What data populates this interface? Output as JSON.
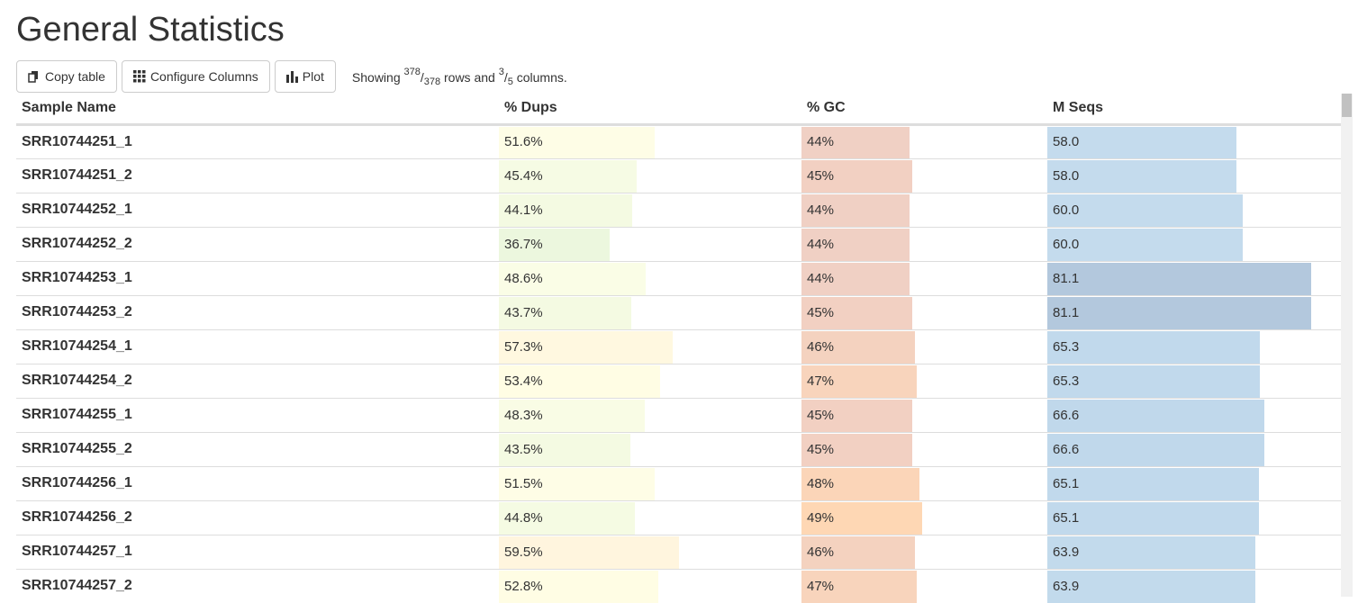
{
  "title": "General Statistics",
  "toolbar": {
    "copy_label": "Copy table",
    "configure_label": "Configure Columns",
    "plot_label": "Plot",
    "showing_prefix": "Showing ",
    "rows_shown": "378",
    "rows_total": "378",
    "rows_word": " rows and ",
    "cols_shown": "3",
    "cols_total": "5",
    "cols_word": " columns."
  },
  "columns": [
    "Sample Name",
    "% Dups",
    "% GC",
    "M Seqs"
  ],
  "rows": [
    {
      "name": "SRR10744251_1",
      "dups": "51.6%",
      "gc": "44%",
      "mseqs": "58.0",
      "dups_frac": 0.516,
      "gc_frac": 0.44,
      "mseqs_frac": 0.716,
      "dups_color": "#fefde6",
      "gc_color": "#f0d0c4",
      "mseqs_color": "#c4dbed"
    },
    {
      "name": "SRR10744251_2",
      "dups": "45.4%",
      "gc": "45%",
      "mseqs": "58.0",
      "dups_frac": 0.454,
      "gc_frac": 0.45,
      "mseqs_frac": 0.716,
      "dups_color": "#f6fbe4",
      "gc_color": "#f2d0c2",
      "mseqs_color": "#c4dbed"
    },
    {
      "name": "SRR10744252_1",
      "dups": "44.1%",
      "gc": "44%",
      "mseqs": "60.0",
      "dups_frac": 0.441,
      "gc_frac": 0.44,
      "mseqs_frac": 0.74,
      "dups_color": "#f4fae2",
      "gc_color": "#f0d0c4",
      "mseqs_color": "#c4dbed"
    },
    {
      "name": "SRR10744252_2",
      "dups": "36.7%",
      "gc": "44%",
      "mseqs": "60.0",
      "dups_frac": 0.367,
      "gc_frac": 0.44,
      "mseqs_frac": 0.74,
      "dups_color": "#ecf7de",
      "gc_color": "#f0d0c4",
      "mseqs_color": "#c4dbed"
    },
    {
      "name": "SRR10744253_1",
      "dups": "48.6%",
      "gc": "44%",
      "mseqs": "81.1",
      "dups_frac": 0.486,
      "gc_frac": 0.44,
      "mseqs_frac": 1.0,
      "dups_color": "#fafde6",
      "gc_color": "#f0d0c4",
      "mseqs_color": "#b3c8dd"
    },
    {
      "name": "SRR10744253_2",
      "dups": "43.7%",
      "gc": "45%",
      "mseqs": "81.1",
      "dups_frac": 0.437,
      "gc_frac": 0.45,
      "mseqs_frac": 1.0,
      "dups_color": "#f4fae2",
      "gc_color": "#f2d0c2",
      "mseqs_color": "#b3c8dd"
    },
    {
      "name": "SRR10744254_1",
      "dups": "57.3%",
      "gc": "46%",
      "mseqs": "65.3",
      "dups_frac": 0.573,
      "gc_frac": 0.46,
      "mseqs_frac": 0.805,
      "dups_color": "#fff8e0",
      "gc_color": "#f4d2bf",
      "mseqs_color": "#c1d9ec"
    },
    {
      "name": "SRR10744254_2",
      "dups": "53.4%",
      "gc": "47%",
      "mseqs": "65.3",
      "dups_frac": 0.534,
      "gc_frac": 0.47,
      "mseqs_frac": 0.805,
      "dups_color": "#fffde4",
      "gc_color": "#f8d4bc",
      "mseqs_color": "#c1d9ec"
    },
    {
      "name": "SRR10744255_1",
      "dups": "48.3%",
      "gc": "45%",
      "mseqs": "66.6",
      "dups_frac": 0.483,
      "gc_frac": 0.45,
      "mseqs_frac": 0.821,
      "dups_color": "#f9fce5",
      "gc_color": "#f2d0c2",
      "mseqs_color": "#c0d8eb"
    },
    {
      "name": "SRR10744255_2",
      "dups": "43.5%",
      "gc": "45%",
      "mseqs": "66.6",
      "dups_frac": 0.435,
      "gc_frac": 0.45,
      "mseqs_frac": 0.821,
      "dups_color": "#f4fae2",
      "gc_color": "#f2d0c2",
      "mseqs_color": "#c0d8eb"
    },
    {
      "name": "SRR10744256_1",
      "dups": "51.5%",
      "gc": "48%",
      "mseqs": "65.1",
      "dups_frac": 0.515,
      "gc_frac": 0.48,
      "mseqs_frac": 0.803,
      "dups_color": "#fefde6",
      "gc_color": "#fbd5b8",
      "mseqs_color": "#c1d9ec"
    },
    {
      "name": "SRR10744256_2",
      "dups": "44.8%",
      "gc": "49%",
      "mseqs": "65.1",
      "dups_frac": 0.448,
      "gc_frac": 0.49,
      "mseqs_frac": 0.803,
      "dups_color": "#f5fbe3",
      "gc_color": "#fed7b4",
      "mseqs_color": "#c1d9ec"
    },
    {
      "name": "SRR10744257_1",
      "dups": "59.5%",
      "gc": "46%",
      "mseqs": "63.9",
      "dups_frac": 0.595,
      "gc_frac": 0.46,
      "mseqs_frac": 0.788,
      "dups_color": "#fff5de",
      "gc_color": "#f4d2bf",
      "mseqs_color": "#c2daec"
    },
    {
      "name": "SRR10744257_2",
      "dups": "52.8%",
      "gc": "47%",
      "mseqs": "63.9",
      "dups_frac": 0.528,
      "gc_frac": 0.47,
      "mseqs_frac": 0.788,
      "dups_color": "#fffde4",
      "gc_color": "#f8d4bc",
      "mseqs_color": "#c2daec"
    }
  ]
}
